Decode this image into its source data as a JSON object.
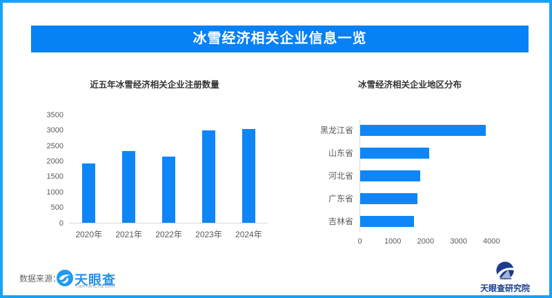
{
  "header": {
    "title": "冰雪经济相关企业信息一览"
  },
  "colors": {
    "frame_border": "#16a2f9",
    "banner_bg": "#0681f6",
    "banner_text": "#ffffff",
    "bar_fill": "#0e86f7",
    "chart_title_text": "#333333",
    "axis_text": "#595959",
    "axis_line": "#d9d9d9",
    "tianyancha_blue": "#2593f2",
    "institute_navy": "#1e3c8c"
  },
  "chart_data": [
    {
      "type": "bar",
      "title": "近五年冰雪经济相关企业注册数量",
      "categories": [
        "2020年",
        "2021年",
        "2022年",
        "2023年",
        "2024年"
      ],
      "values": [
        1930,
        2330,
        2140,
        2990,
        3040
      ],
      "xlabel": "",
      "ylabel": "",
      "ylim": [
        0,
        3500
      ],
      "yticks": [
        0,
        500,
        1000,
        1500,
        2000,
        2500,
        3000,
        3500
      ],
      "grid": false,
      "legend": false
    },
    {
      "type": "bar-horizontal",
      "title": "冰雪经济相关企业地区分布",
      "categories": [
        "黑龙江省",
        "山东省",
        "河北省",
        "广东省",
        "吉林省"
      ],
      "values": [
        3820,
        2090,
        1830,
        1750,
        1640
      ],
      "xlabel": "",
      "ylabel": "",
      "xlim": [
        0,
        4000
      ],
      "xticks": [
        0,
        1000,
        2000,
        3000,
        4000
      ],
      "grid": false,
      "legend": false
    }
  ],
  "footer": {
    "source_label": "数据来源：",
    "tianyancha_logo_text": "天眼查",
    "tianyancha_logo_subtext": "TianYanCha.com",
    "institute_name": "天眼查研究院"
  }
}
